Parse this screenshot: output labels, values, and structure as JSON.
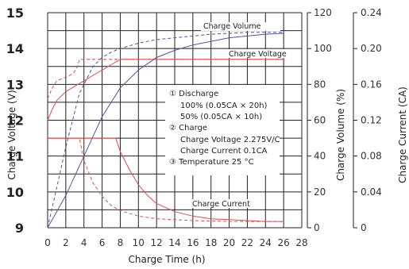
{
  "chart_data": {
    "type": "line",
    "xlabel": "Charge Time (h)",
    "ylabel_left": "Charge Voltage (V)",
    "ylabel_right_1": "Charge Volume (%)",
    "ylabel_right_2": "Charge Current (CA)",
    "x_ticks": [
      "0",
      "2",
      "4",
      "6",
      "8",
      "10",
      "12",
      "14",
      "16",
      "18",
      "20",
      "22",
      "24",
      "26",
      "28"
    ],
    "y_left_ticks": [
      "9",
      "10",
      "11",
      "12",
      "13",
      "14",
      "15"
    ],
    "y_volume_ticks": [
      "0",
      "20",
      "40",
      "60",
      "80",
      "100",
      "120"
    ],
    "y_current_ticks": [
      "0",
      "0.04",
      "0.08",
      "0.12",
      "0.16",
      "0.20",
      "0.24"
    ],
    "xlim": [
      0,
      28
    ],
    "ylim_left": [
      9,
      15
    ],
    "ylim_volume": [
      0,
      120
    ],
    "ylim_current": [
      0,
      0.24
    ],
    "grid": true,
    "label_charge_volume": "Charge Volume",
    "label_charge_voltage": "Charge Voltage",
    "label_charge_current": "Charge Current",
    "annotation": [
      "① Discharge",
      "100% (0.05CA × 20h)",
      "50% (0.05CA × 10h)",
      "② Charge",
      "Charge Voltage 2.275V/C",
      "Charge Current 0.1CA",
      "③ Temperature 25 °C"
    ],
    "colors": {
      "voltage_current": "#e8474f",
      "volume": "#4e55a8",
      "grid": "#222222"
    },
    "series": [
      {
        "axis": "left",
        "style": "solid",
        "color": "#e8474f",
        "x": [
          0,
          0.5,
          1,
          2,
          3,
          4,
          5,
          6,
          7,
          8,
          10,
          14,
          20,
          26
        ],
        "y": [
          12.0,
          12.3,
          12.55,
          12.8,
          12.95,
          13.1,
          13.25,
          13.4,
          13.55,
          13.7,
          13.7,
          13.7,
          13.7,
          13.7
        ]
      },
      {
        "axis": "left",
        "style": "dashed",
        "color": "#e8474f",
        "x": [
          0,
          0.5,
          1,
          2,
          2.8,
          3.3,
          3.5,
          6,
          10,
          14,
          20,
          26
        ],
        "y": [
          12.6,
          12.9,
          13.1,
          13.2,
          13.3,
          13.5,
          13.7,
          13.7,
          13.7,
          13.7,
          13.7,
          13.7
        ]
      },
      {
        "axis": "volume",
        "style": "solid",
        "color": "#4e55a8",
        "x": [
          0,
          2,
          4,
          6,
          8,
          10,
          12,
          14,
          16,
          18,
          20,
          22,
          24,
          26
        ],
        "y": [
          0,
          18,
          40,
          62,
          78,
          88,
          95,
          99,
          102,
          104,
          106,
          107,
          108,
          108.5
        ]
      },
      {
        "axis": "volume",
        "style": "dashed",
        "color": "#4e55a8",
        "x": [
          0,
          2,
          3.5,
          5,
          6,
          7,
          8,
          10,
          12,
          14,
          16,
          18,
          20,
          22,
          24,
          26
        ],
        "y": [
          0,
          45,
          75,
          90,
          95,
          98,
          100,
          103,
          105,
          106,
          107,
          108,
          108.5,
          109,
          109,
          109
        ]
      },
      {
        "axis": "current",
        "style": "solid",
        "color": "#e8474f",
        "x": [
          0,
          7.5,
          8,
          9,
          10,
          11,
          12,
          14,
          16,
          18,
          20,
          22,
          24,
          26
        ],
        "y": [
          0.1,
          0.1,
          0.085,
          0.065,
          0.048,
          0.036,
          0.027,
          0.018,
          0.013,
          0.01,
          0.009,
          0.008,
          0.007,
          0.007
        ]
      },
      {
        "axis": "current",
        "style": "dashed",
        "color": "#e8474f",
        "x": [
          0,
          3.5,
          4,
          5,
          6,
          7,
          8,
          10,
          12,
          14,
          16,
          20,
          26
        ],
        "y": [
          0.1,
          0.1,
          0.075,
          0.05,
          0.035,
          0.025,
          0.019,
          0.013,
          0.01,
          0.009,
          0.008,
          0.007,
          0.007
        ]
      }
    ]
  }
}
